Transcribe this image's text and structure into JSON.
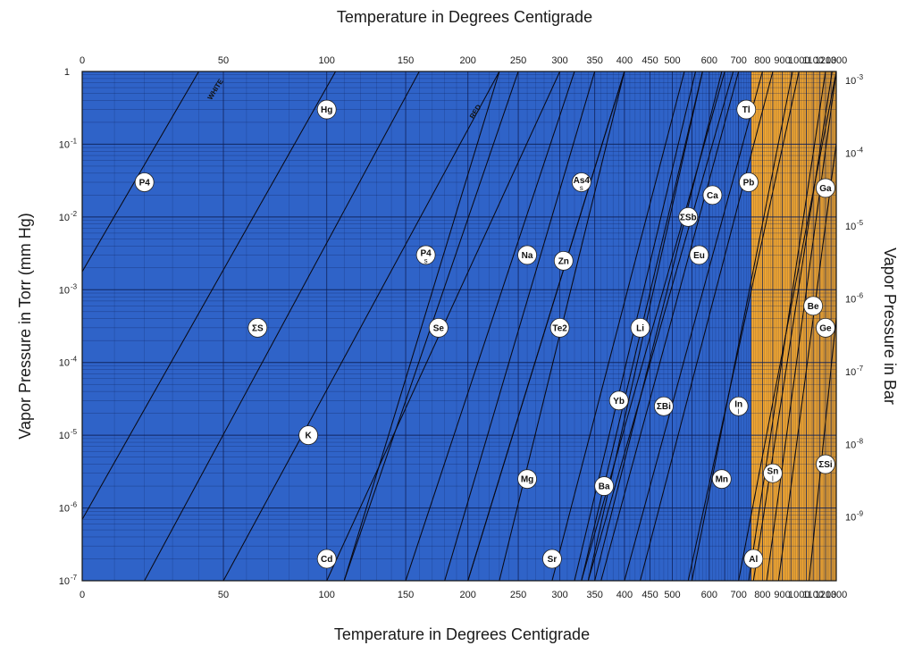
{
  "chart_data": {
    "type": "line",
    "title": "",
    "top_xlabel": "Temperature in Degrees Centigrade",
    "bottom_xlabel": "Temperature in Degrees Centigrade",
    "ylabel_left": "Vapor Pressure in Torr (mm Hg)",
    "ylabel_right": "Vapor Pressure in Bar",
    "top_ticks": [
      "0",
      "50",
      "100",
      "150",
      "200",
      "250",
      "300",
      "350",
      "400",
      "450",
      "500",
      "600",
      "700",
      "800",
      "900",
      "1000",
      "1100",
      "1200",
      "1300"
    ],
    "bottom_ticks": [
      "0",
      "50",
      "100",
      "150",
      "200",
      "250",
      "300",
      "350",
      "400",
      "450",
      "500",
      "600",
      "700",
      "800",
      "900",
      "1000",
      "1100",
      "1200",
      "1300"
    ],
    "left_ticks": [
      {
        "base": "1",
        "exp": ""
      },
      {
        "base": "10",
        "exp": "-1"
      },
      {
        "base": "10",
        "exp": "-2"
      },
      {
        "base": "10",
        "exp": "-3"
      },
      {
        "base": "10",
        "exp": "-4"
      },
      {
        "base": "10",
        "exp": "-5"
      },
      {
        "base": "10",
        "exp": "-6"
      },
      {
        "base": "10",
        "exp": "-7"
      }
    ],
    "right_ticks": [
      {
        "base": "10",
        "exp": "-3"
      },
      {
        "base": "10",
        "exp": "-4"
      },
      {
        "base": "10",
        "exp": "-5"
      },
      {
        "base": "10",
        "exp": "-6"
      },
      {
        "base": "10",
        "exp": "-7"
      },
      {
        "base": "10",
        "exp": "-8"
      },
      {
        "base": "10",
        "exp": "-9"
      }
    ],
    "ylim_torr": [
      1e-07,
      1
    ],
    "temperature_scale": "reciprocal (1/T)",
    "colors": {
      "low_region": "#2f63c8",
      "high_region": "#f2a630",
      "grid": "#0e1f55",
      "curve": "#0a0a14"
    },
    "region_split_temp_c": 750,
    "curve_notes": [
      "WHITE",
      "RED"
    ],
    "elements": [
      {
        "label": "P4",
        "sub": "",
        "t_c": 20,
        "p_torr": 0.03
      },
      {
        "label": "Hg",
        "sub": "",
        "t_c": 100,
        "p_torr": 0.3
      },
      {
        "label": "ΣS",
        "sub": "",
        "t_c": 65,
        "p_torr": 0.0003
      },
      {
        "label": "K",
        "sub": "",
        "t_c": 90,
        "p_torr": 1e-05
      },
      {
        "label": "Cd",
        "sub": "",
        "t_c": 100,
        "p_torr": 2e-07
      },
      {
        "label": "P4",
        "sub": "s",
        "t_c": 165,
        "p_torr": 0.003
      },
      {
        "label": "Se",
        "sub": "",
        "t_c": 175,
        "p_torr": 0.0003
      },
      {
        "label": "Mg",
        "sub": "",
        "t_c": 260,
        "p_torr": 2.5e-06
      },
      {
        "label": "Na",
        "sub": "",
        "t_c": 260,
        "p_torr": 0.003
      },
      {
        "label": "Zn",
        "sub": "",
        "t_c": 305,
        "p_torr": 0.0025
      },
      {
        "label": "Te2",
        "sub": "",
        "t_c": 300,
        "p_torr": 0.0003
      },
      {
        "label": "Sr",
        "sub": "",
        "t_c": 290,
        "p_torr": 2e-07
      },
      {
        "label": "As4",
        "sub": "s",
        "t_c": 330,
        "p_torr": 0.03
      },
      {
        "label": "Ba",
        "sub": "",
        "t_c": 365,
        "p_torr": 2e-06
      },
      {
        "label": "Yb",
        "sub": "",
        "t_c": 390,
        "p_torr": 3e-05
      },
      {
        "label": "Li",
        "sub": "",
        "t_c": 430,
        "p_torr": 0.0003
      },
      {
        "label": "ΣBi",
        "sub": "",
        "t_c": 480,
        "p_torr": 2.5e-05
      },
      {
        "label": "ΣSb",
        "sub": "",
        "t_c": 540,
        "p_torr": 0.01
      },
      {
        "label": "Eu",
        "sub": "",
        "t_c": 570,
        "p_torr": 0.003
      },
      {
        "label": "Ca",
        "sub": "",
        "t_c": 610,
        "p_torr": 0.02
      },
      {
        "label": "Mn",
        "sub": "",
        "t_c": 640,
        "p_torr": 2.5e-06
      },
      {
        "label": "In",
        "sub": "l",
        "t_c": 700,
        "p_torr": 2.5e-05
      },
      {
        "label": "Tl",
        "sub": "",
        "t_c": 730,
        "p_torr": 0.3
      },
      {
        "label": "Pb",
        "sub": "",
        "t_c": 740,
        "p_torr": 0.03
      },
      {
        "label": "Al",
        "sub": "",
        "t_c": 760,
        "p_torr": 2e-07
      },
      {
        "label": "Sn",
        "sub": "l",
        "t_c": 850,
        "p_torr": 3e-06
      },
      {
        "label": "Be",
        "sub": "",
        "t_c": 1100,
        "p_torr": 0.0006
      },
      {
        "label": "Ge",
        "sub": "",
        "t_c": 1200,
        "p_torr": 0.0003
      },
      {
        "label": "Ga",
        "sub": "",
        "t_c": 1200,
        "p_torr": 0.025
      },
      {
        "label": "ΣSi",
        "sub": "",
        "t_c": 1200,
        "p_torr": 4e-06
      }
    ],
    "curves": [
      {
        "name": "P4-white",
        "t1": -45,
        "t2": 40
      },
      {
        "name": "Hg",
        "t1": -10,
        "t2": 105
      },
      {
        "name": "S",
        "t1": 20,
        "t2": 160
      },
      {
        "name": "P4-red",
        "t1": 110,
        "t2": 230
      },
      {
        "name": "K",
        "t1": 50,
        "t2": 230
      },
      {
        "name": "Cd",
        "t1": 100,
        "t2": 300
      },
      {
        "name": "Se",
        "t1": 110,
        "t2": 250
      },
      {
        "name": "Na",
        "t1": 150,
        "t2": 320
      },
      {
        "name": "Zn",
        "t1": 180,
        "t2": 350
      },
      {
        "name": "Te2",
        "t1": 200,
        "t2": 400
      },
      {
        "name": "Mg",
        "t1": 200,
        "t2": 400
      },
      {
        "name": "As4",
        "t1": 230,
        "t2": 400
      },
      {
        "name": "Sr",
        "t1": 290,
        "t2": 530
      },
      {
        "name": "Ba",
        "t1": 340,
        "t2": 580
      },
      {
        "name": "Yb",
        "t1": 320,
        "t2": 560
      },
      {
        "name": "Li",
        "t1": 330,
        "t2": 580
      },
      {
        "name": "Bi",
        "t1": 340,
        "t2": 680
      },
      {
        "name": "Sb",
        "t1": 330,
        "t2": 650
      },
      {
        "name": "Eu",
        "t1": 350,
        "t2": 640
      },
      {
        "name": "Ca",
        "t1": 360,
        "t2": 700
      },
      {
        "name": "Mn",
        "t1": 550,
        "t2": 960
      },
      {
        "name": "In",
        "t1": 540,
        "t2": 1000
      },
      {
        "name": "Tl",
        "t1": 400,
        "t2": 800
      },
      {
        "name": "Pb",
        "t1": 430,
        "t2": 850
      },
      {
        "name": "Al",
        "t1": 740,
        "t2": 1200
      },
      {
        "name": "Sn",
        "t1": 760,
        "t2": 1260
      },
      {
        "name": "Be",
        "t1": 820,
        "t2": 1300
      },
      {
        "name": "Ge",
        "t1": 880,
        "t2": 1400
      },
      {
        "name": "Ga",
        "t1": 700,
        "t2": 1300
      },
      {
        "name": "Si",
        "t1": 1070,
        "t2": 1600
      }
    ]
  }
}
